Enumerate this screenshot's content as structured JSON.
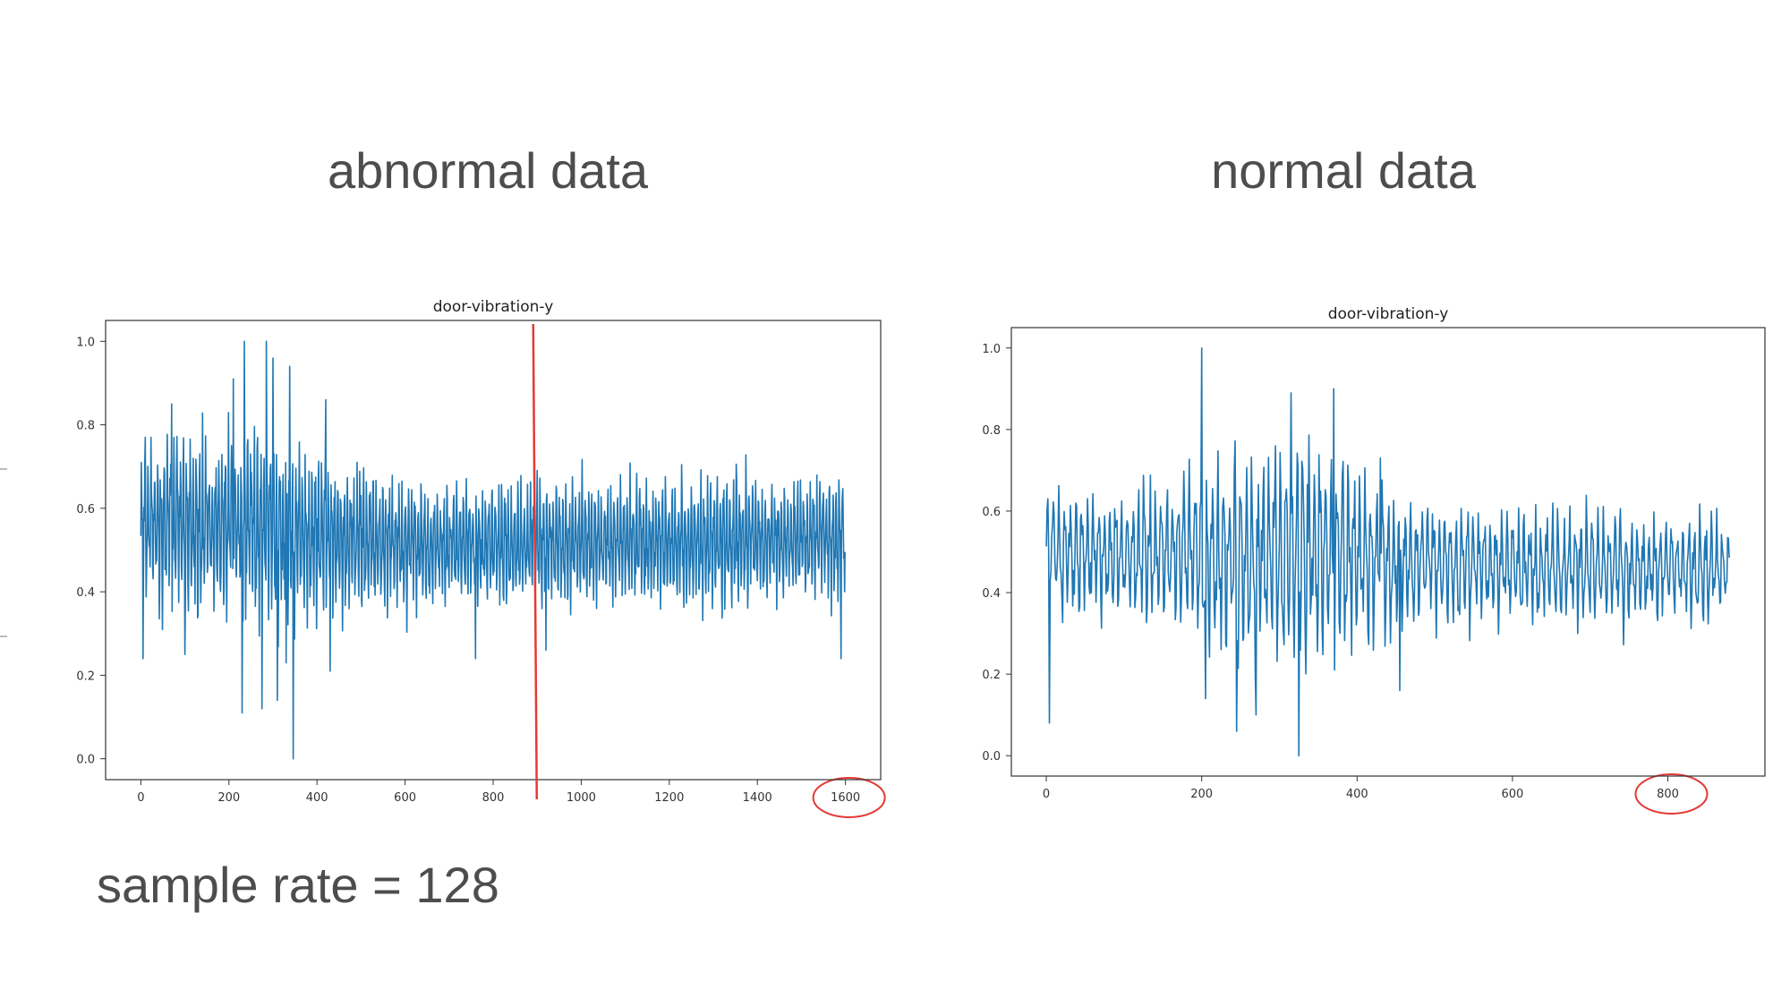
{
  "slide": {
    "left_heading": "abnormal data",
    "right_heading": "normal data",
    "note": "sample rate = 128"
  },
  "colors": {
    "series": "#1f77b4",
    "highlight": "#e53935",
    "heading_text": "#4d4d4d"
  },
  "chart_data": [
    {
      "type": "line",
      "title": "door-vibration-y",
      "xlabel": "",
      "ylabel": "",
      "xlim": [
        -80,
        1680
      ],
      "ylim": [
        -0.05,
        1.05
      ],
      "xticks": [
        0,
        200,
        400,
        600,
        800,
        1000,
        1200,
        1400,
        1600
      ],
      "yticks": [
        "0.0",
        "0.2",
        "0.4",
        "0.6",
        "0.8",
        "1.0"
      ],
      "grid": false,
      "legend": "none",
      "n_points": 1600,
      "baseline_profile": {
        "x": [
          0,
          150,
          300,
          450,
          700,
          1000,
          1300,
          1600
        ],
        "mean": [
          0.56,
          0.56,
          0.55,
          0.53,
          0.51,
          0.52,
          0.52,
          0.53
        ],
        "amplitude": [
          0.2,
          0.22,
          0.24,
          0.2,
          0.15,
          0.16,
          0.16,
          0.15
        ]
      },
      "spikes": [
        {
          "x": 5,
          "y": 0.24
        },
        {
          "x": 10,
          "y": 0.77
        },
        {
          "x": 70,
          "y": 0.85
        },
        {
          "x": 100,
          "y": 0.25
        },
        {
          "x": 210,
          "y": 0.91
        },
        {
          "x": 230,
          "y": 0.11
        },
        {
          "x": 235,
          "y": 1.0
        },
        {
          "x": 275,
          "y": 0.12
        },
        {
          "x": 285,
          "y": 1.0
        },
        {
          "x": 300,
          "y": 0.96
        },
        {
          "x": 310,
          "y": 0.14
        },
        {
          "x": 330,
          "y": 0.23
        },
        {
          "x": 338,
          "y": 0.94
        },
        {
          "x": 346,
          "y": 0.0
        },
        {
          "x": 420,
          "y": 0.86
        },
        {
          "x": 430,
          "y": 0.21
        },
        {
          "x": 760,
          "y": 0.24
        },
        {
          "x": 920,
          "y": 0.26
        },
        {
          "x": 1590,
          "y": 0.24
        },
        {
          "x": 1598,
          "y": 0.4
        }
      ],
      "marker": {
        "x": 893,
        "label": ""
      },
      "circled_tick": 1600
    },
    {
      "type": "line",
      "title": "door-vibration-y",
      "xlabel": "",
      "ylabel": "",
      "xlim": [
        -45,
        925
      ],
      "ylim": [
        -0.05,
        1.05
      ],
      "xticks": [
        0,
        200,
        400,
        600,
        800
      ],
      "yticks": [
        "0.0",
        "0.2",
        "0.4",
        "0.6",
        "0.8",
        "1.0"
      ],
      "grid": false,
      "legend": "none",
      "n_points": 880,
      "baseline_profile": {
        "x": [
          0,
          150,
          250,
          350,
          450,
          600,
          880
        ],
        "mean": [
          0.5,
          0.5,
          0.48,
          0.5,
          0.47,
          0.46,
          0.46
        ],
        "amplitude": [
          0.16,
          0.18,
          0.3,
          0.32,
          0.17,
          0.15,
          0.14
        ]
      },
      "spikes": [
        {
          "x": 2,
          "y": 0.63
        },
        {
          "x": 4,
          "y": 0.08
        },
        {
          "x": 200,
          "y": 1.0
        },
        {
          "x": 205,
          "y": 0.14
        },
        {
          "x": 245,
          "y": 0.06
        },
        {
          "x": 270,
          "y": 0.1
        },
        {
          "x": 315,
          "y": 0.89
        },
        {
          "x": 325,
          "y": 0.0
        },
        {
          "x": 370,
          "y": 0.9
        },
        {
          "x": 430,
          "y": 0.73
        },
        {
          "x": 455,
          "y": 0.16
        },
        {
          "x": 880,
          "y": 0.56
        }
      ],
      "circled_tick": 800
    }
  ]
}
